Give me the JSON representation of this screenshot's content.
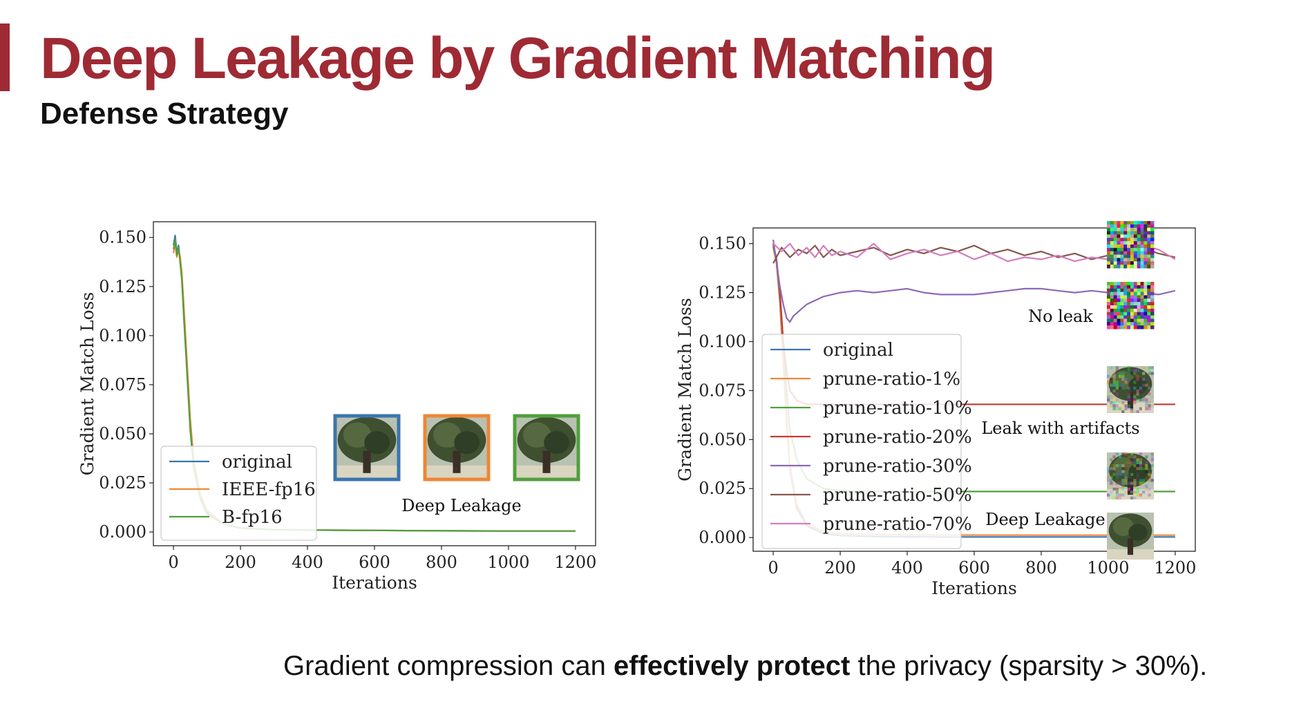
{
  "slide": {
    "title": "Deep Leakage by Gradient Matching",
    "subtitle": "Defense Strategy",
    "caption_pre": "Gradient compression can ",
    "caption_bold": "effectively protect",
    "caption_post": " the privacy (sparsity > 30%).",
    "accent_color": "#9e2a34"
  },
  "chart_data": [
    {
      "type": "line",
      "xlabel": "Iterations",
      "ylabel": "Gradient Match Loss",
      "xlim": [
        -60,
        1260
      ],
      "ylim": [
        -0.007,
        0.158
      ],
      "xticks": [
        0,
        200,
        400,
        600,
        800,
        1000,
        1200
      ],
      "yticks": [
        0.0,
        0.025,
        0.05,
        0.075,
        0.1,
        0.125,
        0.15
      ],
      "ytick_labels": [
        "0.000",
        "0.025",
        "0.050",
        "0.075",
        "0.100",
        "0.125",
        "0.150"
      ],
      "legend_position": "lower-left",
      "series": [
        {
          "name": "original",
          "color": "#3b75af",
          "x": [
            0,
            5,
            10,
            15,
            20,
            25,
            30,
            40,
            50,
            60,
            80,
            100,
            150,
            200,
            300,
            400,
            600,
            800,
            1000,
            1200
          ],
          "y": [
            0.146,
            0.151,
            0.142,
            0.146,
            0.138,
            0.13,
            0.115,
            0.085,
            0.055,
            0.035,
            0.018,
            0.01,
            0.004,
            0.002,
            0.0012,
            0.001,
            0.0008,
            0.0006,
            0.0005,
            0.0005
          ]
        },
        {
          "name": "IEEE-fp16",
          "color": "#ef8636",
          "x": [
            0,
            5,
            10,
            15,
            20,
            25,
            30,
            40,
            50,
            60,
            80,
            100,
            150,
            200,
            300,
            400,
            600,
            800,
            1000,
            1200
          ],
          "y": [
            0.142,
            0.147,
            0.14,
            0.144,
            0.14,
            0.132,
            0.118,
            0.088,
            0.058,
            0.037,
            0.019,
            0.011,
            0.004,
            0.002,
            0.0012,
            0.001,
            0.0008,
            0.0006,
            0.0005,
            0.0005
          ]
        },
        {
          "name": "B-fp16",
          "color": "#519e3e",
          "x": [
            0,
            5,
            10,
            15,
            20,
            25,
            30,
            40,
            50,
            60,
            80,
            100,
            150,
            200,
            300,
            400,
            600,
            800,
            1000,
            1200
          ],
          "y": [
            0.144,
            0.149,
            0.141,
            0.145,
            0.137,
            0.128,
            0.112,
            0.082,
            0.052,
            0.033,
            0.017,
            0.009,
            0.004,
            0.002,
            0.0012,
            0.001,
            0.0008,
            0.0006,
            0.0005,
            0.0005
          ]
        }
      ],
      "annotations": [
        {
          "text": "Deep Leakage"
        }
      ],
      "thumbnails": [
        {
          "border": "#3b75af",
          "kind": "tree"
        },
        {
          "border": "#ef8636",
          "kind": "tree"
        },
        {
          "border": "#519e3e",
          "kind": "tree"
        }
      ]
    },
    {
      "type": "line",
      "xlabel": "Iterations",
      "ylabel": "Gradient Match Loss",
      "xlim": [
        -60,
        1260
      ],
      "ylim": [
        -0.007,
        0.158
      ],
      "xticks": [
        0,
        200,
        400,
        600,
        800,
        1000,
        1200
      ],
      "yticks": [
        0.0,
        0.025,
        0.05,
        0.075,
        0.1,
        0.125,
        0.15
      ],
      "ytick_labels": [
        "0.000",
        "0.025",
        "0.050",
        "0.075",
        "0.100",
        "0.125",
        "0.150"
      ],
      "legend_position": "lower-left",
      "series": [
        {
          "name": "original",
          "color": "#3b75af",
          "x": [
            0,
            10,
            20,
            30,
            40,
            50,
            70,
            100,
            150,
            200,
            300,
            500,
            800,
            1000,
            1200
          ],
          "y": [
            0.15,
            0.14,
            0.12,
            0.09,
            0.06,
            0.035,
            0.015,
            0.006,
            0.002,
            0.001,
            0.0005,
            0.0003,
            0.0003,
            0.0003,
            0.0003
          ]
        },
        {
          "name": "prune-ratio-1%",
          "color": "#ef8636",
          "x": [
            0,
            10,
            20,
            30,
            40,
            50,
            70,
            100,
            150,
            200,
            300,
            500,
            800,
            1000,
            1200
          ],
          "y": [
            0.148,
            0.14,
            0.122,
            0.092,
            0.062,
            0.037,
            0.017,
            0.007,
            0.003,
            0.002,
            0.0015,
            0.0013,
            0.0012,
            0.0012,
            0.0012
          ]
        },
        {
          "name": "prune-ratio-10%",
          "color": "#519e3e",
          "x": [
            0,
            10,
            20,
            30,
            40,
            50,
            70,
            100,
            150,
            200,
            300,
            500,
            800,
            1000,
            1200
          ],
          "y": [
            0.149,
            0.141,
            0.125,
            0.1,
            0.075,
            0.055,
            0.04,
            0.03,
            0.025,
            0.024,
            0.0235,
            0.0235,
            0.0235,
            0.0235,
            0.0235
          ]
        },
        {
          "name": "prune-ratio-20%",
          "color": "#c53a32",
          "x": [
            0,
            10,
            20,
            30,
            40,
            50,
            70,
            100,
            150,
            200,
            300,
            500,
            800,
            1000,
            1200
          ],
          "y": [
            0.15,
            0.142,
            0.125,
            0.1,
            0.085,
            0.075,
            0.07,
            0.068,
            0.068,
            0.068,
            0.068,
            0.068,
            0.068,
            0.068,
            0.068
          ]
        },
        {
          "name": "prune-ratio-30%",
          "color": "#8d69b8",
          "x": [
            0,
            10,
            20,
            30,
            40,
            50,
            60,
            80,
            100,
            150,
            200,
            250,
            300,
            350,
            400,
            450,
            500,
            550,
            600,
            650,
            700,
            750,
            800,
            850,
            900,
            950,
            1000,
            1050,
            1100,
            1150,
            1200
          ],
          "y": [
            0.152,
            0.14,
            0.128,
            0.119,
            0.112,
            0.11,
            0.113,
            0.116,
            0.119,
            0.123,
            0.125,
            0.126,
            0.125,
            0.126,
            0.127,
            0.125,
            0.124,
            0.124,
            0.124,
            0.125,
            0.126,
            0.127,
            0.127,
            0.126,
            0.125,
            0.126,
            0.125,
            0.126,
            0.125,
            0.124,
            0.126
          ]
        },
        {
          "name": "prune-ratio-50%",
          "color": "#84584e",
          "x": [
            0,
            25,
            50,
            75,
            100,
            125,
            150,
            175,
            200,
            250,
            300,
            350,
            400,
            450,
            500,
            550,
            600,
            650,
            700,
            750,
            800,
            850,
            900,
            950,
            1000,
            1050,
            1100,
            1150,
            1200
          ],
          "y": [
            0.14,
            0.148,
            0.143,
            0.147,
            0.145,
            0.149,
            0.143,
            0.147,
            0.144,
            0.146,
            0.148,
            0.144,
            0.147,
            0.145,
            0.148,
            0.146,
            0.149,
            0.145,
            0.147,
            0.144,
            0.146,
            0.143,
            0.145,
            0.142,
            0.144,
            0.146,
            0.148,
            0.145,
            0.143
          ]
        },
        {
          "name": "prune-ratio-70%",
          "color": "#d57dbf",
          "x": [
            0,
            25,
            50,
            75,
            100,
            125,
            150,
            175,
            200,
            250,
            300,
            350,
            400,
            450,
            500,
            550,
            600,
            650,
            700,
            750,
            800,
            850,
            900,
            950,
            1000,
            1050,
            1100,
            1150,
            1200
          ],
          "y": [
            0.15,
            0.146,
            0.15,
            0.144,
            0.148,
            0.143,
            0.149,
            0.144,
            0.146,
            0.143,
            0.15,
            0.142,
            0.145,
            0.147,
            0.144,
            0.146,
            0.142,
            0.145,
            0.141,
            0.143,
            0.142,
            0.144,
            0.141,
            0.143,
            0.142,
            0.145,
            0.149,
            0.147,
            0.142
          ]
        }
      ],
      "annotations": [
        {
          "text": "No leak"
        },
        {
          "text": "Leak with artifacts"
        },
        {
          "text": "Deep Leakage"
        }
      ],
      "thumbnails": [
        {
          "kind": "noise"
        },
        {
          "kind": "noise"
        },
        {
          "kind": "noisy-tree"
        },
        {
          "kind": "noisy-tree"
        },
        {
          "kind": "tree"
        }
      ]
    }
  ]
}
